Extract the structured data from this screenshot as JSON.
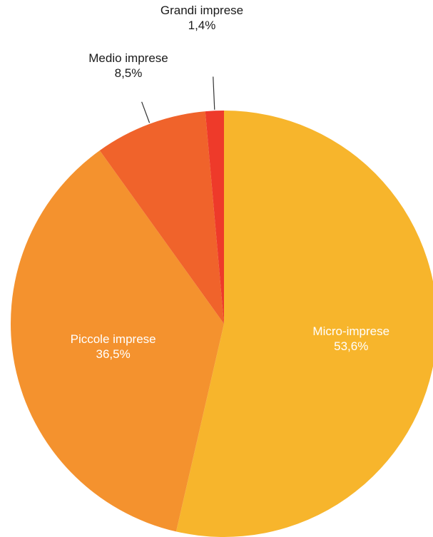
{
  "chart_data": {
    "type": "pie",
    "title": "",
    "slices": [
      {
        "name": "Micro-imprese",
        "value": 53.6,
        "value_label": "53,6%",
        "color": "#F7B52C"
      },
      {
        "name": "Piccole imprese",
        "value": 36.5,
        "value_label": "36,5%",
        "color": "#F4922E"
      },
      {
        "name": "Medio imprese",
        "value": 8.5,
        "value_label": "8,5%",
        "color": "#F0632B"
      },
      {
        "name": "Grandi imprese",
        "value": 1.4,
        "value_label": "1,4%",
        "color": "#EE3A2A"
      }
    ],
    "legend": "none"
  }
}
